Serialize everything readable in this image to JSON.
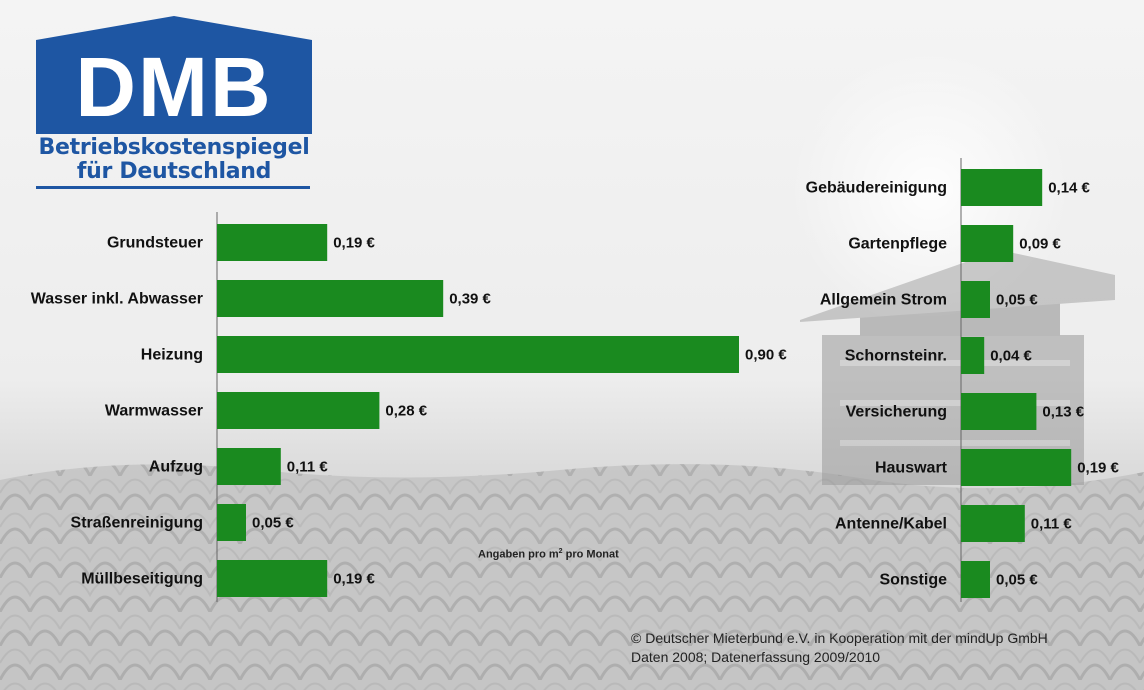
{
  "logo": {
    "name": "DMB",
    "line1": "Betriebskostenspiegel",
    "line2": "für Deutschland"
  },
  "colors": {
    "bar": "#1a8a1f",
    "brand": "#1e56a3"
  },
  "chart_data": [
    {
      "type": "bar",
      "orientation": "horizontal",
      "categories": [
        "Grundsteuer",
        "Wasser inkl. Abwasser",
        "Heizung",
        "Warmwasser",
        "Aufzug",
        "Straßenreinigung",
        "Müllbeseitigung"
      ],
      "values": [
        0.19,
        0.39,
        0.9,
        0.28,
        0.11,
        0.05,
        0.19
      ],
      "value_labels": [
        "0,19 €",
        "0,39 €",
        "0,90 €",
        "0,28 €",
        "0,11 €",
        "0,05 €",
        "0,19 €"
      ],
      "unit": "€"
    },
    {
      "type": "bar",
      "orientation": "horizontal",
      "categories": [
        "Gebäudereinigung",
        "Gartenpflege",
        "Allgemein Strom",
        "Schornsteinr.",
        "Versicherung",
        "Hauswart",
        "Antenne/Kabel",
        "Sonstige"
      ],
      "values": [
        0.14,
        0.09,
        0.05,
        0.04,
        0.13,
        0.19,
        0.11,
        0.05
      ],
      "value_labels": [
        "0,14 €",
        "0,09 €",
        "0,05 €",
        "0,04 €",
        "0,13 €",
        "0,19 €",
        "0,11 €",
        "0,05 €"
      ],
      "unit": "€"
    }
  ],
  "note": {
    "prefix": "Angaben pro m",
    "sup": "2",
    "suffix": " pro Monat"
  },
  "credit": {
    "line1": "© Deutscher Mieterbund e.V. in Kooperation mit der mindUp GmbH",
    "line2": "Daten 2008; Datenerfassung 2009/2010"
  }
}
